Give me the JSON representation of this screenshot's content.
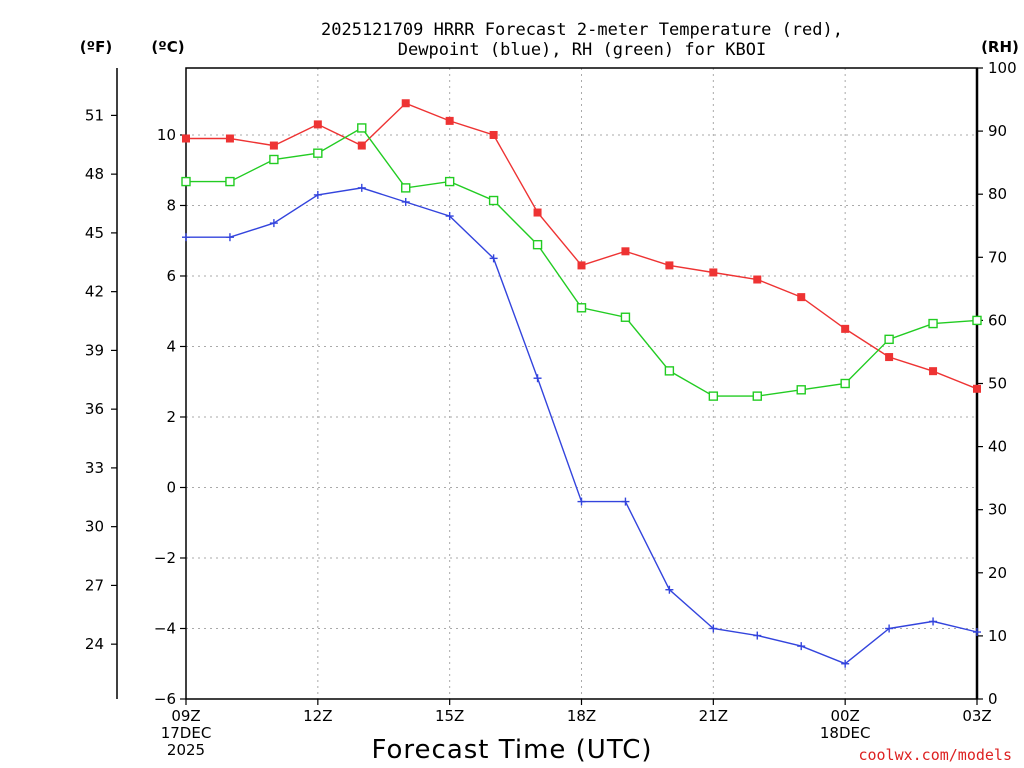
{
  "chart_data": {
    "type": "line",
    "title_lines": [
      "2025121709 HRRR Forecast 2-meter Temperature (red),",
      "Dewpoint (blue), RH (green) for KBOI"
    ],
    "xlabel": "Forecast Time (UTC)",
    "credit": "coolwx.com/models",
    "units": {
      "fahrenheit": "(ºF)",
      "celsius": "(ºC)",
      "rh": "(RH)"
    },
    "x_hours": [
      0,
      1,
      2,
      3,
      4,
      5,
      6,
      7,
      8,
      9,
      10,
      11,
      12,
      13,
      14,
      15,
      16,
      17,
      18
    ],
    "xlim": [
      0,
      18
    ],
    "x_ticks": [
      {
        "hour": 0,
        "lines": [
          "09Z",
          "17DEC",
          "2025"
        ]
      },
      {
        "hour": 3,
        "lines": [
          "12Z"
        ]
      },
      {
        "hour": 6,
        "lines": [
          "15Z"
        ]
      },
      {
        "hour": 9,
        "lines": [
          "18Z"
        ]
      },
      {
        "hour": 12,
        "lines": [
          "21Z"
        ]
      },
      {
        "hour": 15,
        "lines": [
          "00Z",
          "18DEC"
        ]
      },
      {
        "hour": 18,
        "lines": [
          "03Z"
        ]
      }
    ],
    "celsius_axis": {
      "min": -6,
      "max": 11.9,
      "ticks": [
        -6,
        -4,
        -2,
        0,
        2,
        4,
        6,
        8,
        10
      ]
    },
    "fahrenheit_ticks": [
      24,
      27,
      30,
      33,
      36,
      39,
      42,
      45,
      48,
      51
    ],
    "rh_axis": {
      "min": 0,
      "max": 100,
      "ticks": [
        0,
        10,
        20,
        30,
        40,
        50,
        60,
        70,
        80,
        90,
        100
      ]
    },
    "series": [
      {
        "name": "2-meter Temperature",
        "axis": "celsius",
        "color": "#ee3333",
        "marker": "filled-square",
        "values": [
          9.9,
          9.9,
          9.7,
          10.3,
          9.7,
          10.9,
          10.4,
          10.0,
          7.8,
          6.3,
          6.7,
          6.3,
          6.1,
          5.9,
          5.4,
          4.5,
          3.7,
          3.3,
          2.8
        ]
      },
      {
        "name": "Dewpoint",
        "axis": "celsius",
        "color": "#3344dd",
        "marker": "plus",
        "values": [
          7.1,
          7.1,
          7.5,
          8.3,
          8.5,
          8.1,
          7.7,
          6.5,
          3.1,
          -0.4,
          -0.4,
          -2.9,
          -4.0,
          -4.2,
          -4.5,
          -5.0,
          -4.0,
          -3.8,
          -4.1
        ]
      },
      {
        "name": "Relative Humidity",
        "axis": "rh",
        "color": "#22cc22",
        "marker": "open-square",
        "values": [
          82,
          82,
          85.5,
          86.5,
          90.5,
          81,
          82,
          79,
          72,
          62,
          60.5,
          52,
          48,
          48,
          49,
          50,
          57,
          59.5,
          60
        ]
      }
    ]
  }
}
